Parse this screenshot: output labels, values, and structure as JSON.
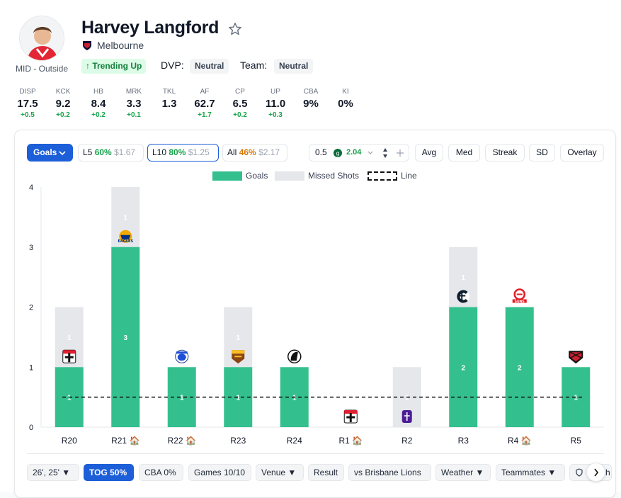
{
  "player": {
    "name": "Harvey Langford",
    "club": "Melbourne",
    "position": "MID - Outside",
    "trend": "↑ Trending Up",
    "dvp_label": "DVP:",
    "dvp_value": "Neutral",
    "team_label": "Team:",
    "team_value": "Neutral"
  },
  "stats": [
    {
      "key": "DISP",
      "value": "17.5",
      "delta": "+0.5"
    },
    {
      "key": "KCK",
      "value": "9.2",
      "delta": "+0.2"
    },
    {
      "key": "HB",
      "value": "8.4",
      "delta": "+0.2"
    },
    {
      "key": "MRK",
      "value": "3.3",
      "delta": "+0.1"
    },
    {
      "key": "TKL",
      "value": "1.3",
      "delta": ""
    },
    {
      "key": "AF",
      "value": "62.7",
      "delta": "+1.7"
    },
    {
      "key": "CP",
      "value": "6.5",
      "delta": "+0.2"
    },
    {
      "key": "UP",
      "value": "11.0",
      "delta": "+0.3"
    },
    {
      "key": "CBA",
      "value": "9%",
      "delta": ""
    },
    {
      "key": "KI",
      "value": "0%",
      "delta": ""
    }
  ],
  "toolbar": {
    "stat_select": "Goals",
    "l5": {
      "label": "L5",
      "pct": "60%",
      "odds": "$1.67"
    },
    "l10": {
      "label": "L10",
      "pct": "80%",
      "odds": "$1.25"
    },
    "all": {
      "label": "All",
      "pct": "46%",
      "odds": "$2.17"
    },
    "line_value": "0.5",
    "line_odds": "2.04",
    "buttons": [
      "Avg",
      "Med",
      "Streak",
      "SD",
      "Overlay"
    ]
  },
  "legend": {
    "goals": "Goals",
    "missed": "Missed Shots",
    "line": "Line"
  },
  "colors": {
    "goals": "#34c08e",
    "missed": "#e5e7eb",
    "accent": "#1d5fd8",
    "positive": "#16a34a"
  },
  "chart_data": {
    "type": "bar",
    "stacked": true,
    "categories": [
      "R20",
      "R21 🏠",
      "R22 🏠",
      "R23",
      "R24",
      "R1 🏠",
      "R2",
      "R3",
      "R4 🏠",
      "R5"
    ],
    "series": [
      {
        "name": "Goals",
        "values": [
          1,
          3,
          1,
          1,
          1,
          0,
          0,
          2,
          2,
          1
        ]
      },
      {
        "name": "Missed Shots",
        "values": [
          1,
          1,
          0,
          1,
          0,
          0,
          1,
          1,
          0,
          0
        ]
      }
    ],
    "line": 0.5,
    "ylim": [
      0,
      4
    ],
    "yticks": [
      "0",
      "1",
      "2",
      "3",
      "4"
    ],
    "opponents": [
      "st-kilda-logo-icon",
      "west-coast-eagles-logo-icon",
      "western-bulldogs-logo-icon",
      "hawthorn-logo-icon",
      "collingwood-logo-icon",
      "st-kilda-logo-icon",
      "fremantle-logo-icon",
      "carlton-logo-icon",
      "gold-coast-suns-logo-icon",
      "essendon-logo-icon"
    ]
  },
  "filters": [
    "26', 25' ▼",
    "TOG 50%",
    "CBA 0%",
    "Games 10/10",
    "Venue ▼",
    "Result",
    "vs Brisbane Lions",
    "Weather ▼",
    "Teammates ▼",
    "Match"
  ]
}
